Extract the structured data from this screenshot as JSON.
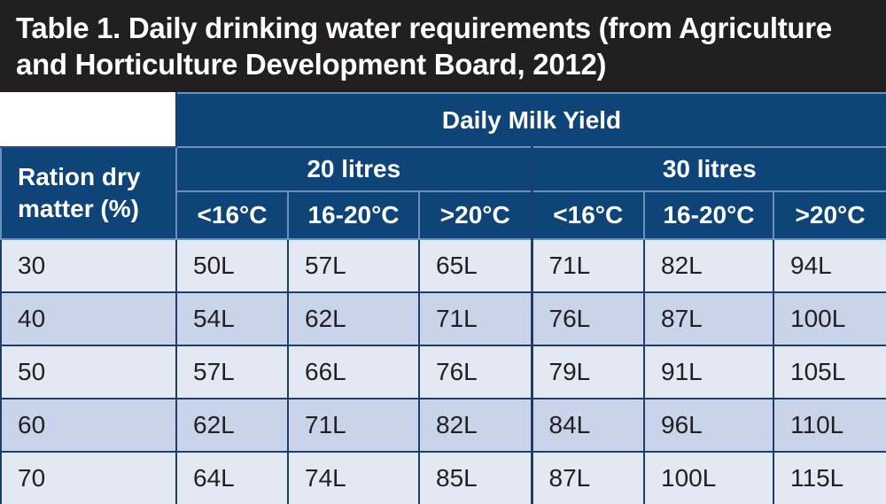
{
  "title": "Table 1. Daily drinking water requirements (from Agriculture and Horticulture Development Board, 2012)",
  "header": {
    "group_label": "Daily Milk Yield",
    "row_label": "Ration dry matter (%)",
    "yields": [
      "20 litres",
      "30 litres"
    ],
    "temps": [
      "<16°C",
      "16-20°C",
      ">20°C",
      "<16°C",
      "16-20°C",
      ">20°C"
    ]
  },
  "rows": [
    {
      "dm": "30",
      "values": [
        "50L",
        "57L",
        "65L",
        "71L",
        "82L",
        "94L"
      ]
    },
    {
      "dm": "40",
      "values": [
        "54L",
        "62L",
        "71L",
        "76L",
        "87L",
        "100L"
      ]
    },
    {
      "dm": "50",
      "values": [
        "57L",
        "66L",
        "76L",
        "79L",
        "91L",
        "105L"
      ]
    },
    {
      "dm": "60",
      "values": [
        "62L",
        "71L",
        "82L",
        "84L",
        "96L",
        "110L"
      ]
    },
    {
      "dm": "70",
      "values": [
        "64L",
        "74L",
        "85L",
        "87L",
        "100L",
        "115L"
      ]
    }
  ],
  "colors": {
    "title_bg": "#231f20",
    "header_bg": "#0e4477",
    "row_light": "#e4e8f3",
    "row_dark": "#c9d3ea"
  }
}
